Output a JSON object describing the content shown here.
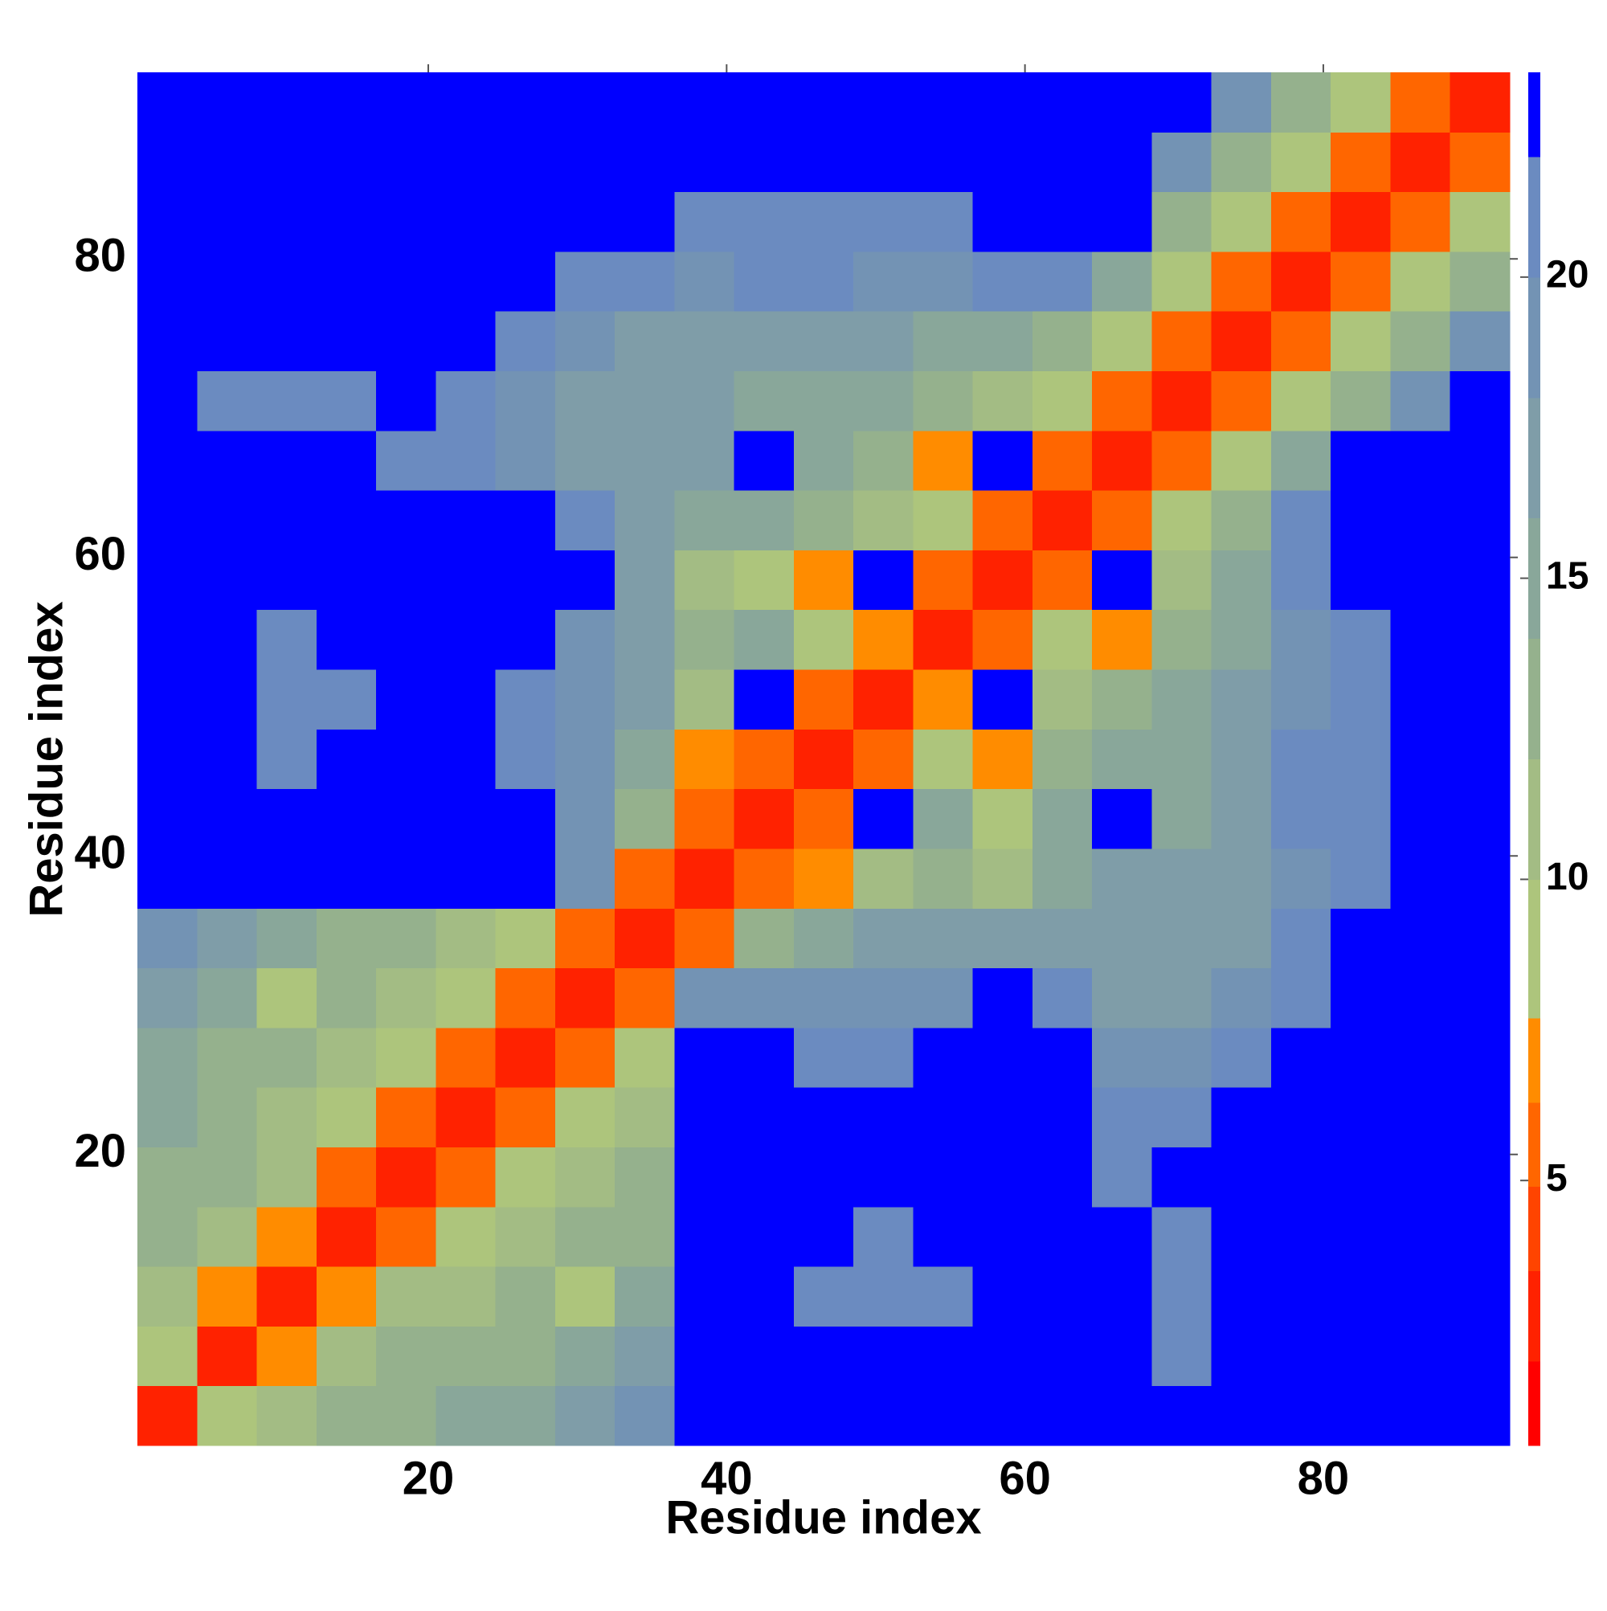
{
  "chart_data": {
    "type": "heatmap",
    "xlabel": "Residue index",
    "ylabel": "Residue index",
    "xlim": [
      0.5,
      92.5
    ],
    "ylim": [
      0.5,
      92.5
    ],
    "xticks": [
      20,
      40,
      60,
      80
    ],
    "yticks": [
      20,
      40,
      60,
      80
    ],
    "x_edges": [
      0.5,
      4.5,
      8.5,
      12.5,
      16.5,
      20.5,
      24.5,
      28.5,
      32.5,
      36.5,
      40.5,
      44.5,
      48.5,
      52.5,
      56.5,
      60.5,
      64.5,
      68.5,
      72.5,
      76.5,
      80.5,
      84.5,
      88.5,
      92.5
    ],
    "y_edges": [
      0.5,
      4.5,
      8.5,
      12.5,
      16.5,
      20.5,
      24.5,
      28.5,
      32.5,
      36.5,
      40.5,
      44.5,
      48.5,
      52.5,
      56.5,
      60.5,
      64.5,
      68.5,
      72.5,
      76.5,
      80.5,
      84.5,
      88.5,
      92.5
    ],
    "values": [
      [
        2,
        8,
        11,
        12,
        13,
        14,
        15,
        17,
        18,
        25,
        25,
        25,
        25,
        25,
        25,
        25,
        25,
        25,
        25,
        25,
        25,
        25,
        25
      ],
      [
        8,
        2,
        7,
        10,
        12,
        13,
        13,
        14,
        16,
        25,
        25,
        25,
        25,
        25,
        25,
        25,
        25,
        21,
        25,
        25,
        25,
        25,
        25
      ],
      [
        11,
        7,
        2,
        7,
        10,
        11,
        12,
        9,
        14,
        23,
        25,
        21,
        21,
        21,
        25,
        25,
        25,
        20,
        25,
        25,
        25,
        25,
        25
      ],
      [
        12,
        10,
        7,
        2,
        6,
        9,
        11,
        12,
        13,
        25,
        25,
        22,
        21,
        25,
        25,
        25,
        22,
        21,
        25,
        25,
        25,
        25,
        25
      ],
      [
        13,
        12,
        10,
        6,
        2,
        5,
        8,
        11,
        13,
        25,
        25,
        25,
        23,
        25,
        25,
        25,
        21,
        22,
        25,
        25,
        25,
        25,
        25
      ],
      [
        14,
        13,
        11,
        9,
        5,
        2,
        5,
        8,
        11,
        25,
        25,
        23,
        25,
        25,
        25,
        25,
        21,
        20,
        25,
        25,
        25,
        25,
        25
      ],
      [
        15,
        13,
        12,
        11,
        8,
        5,
        2,
        5,
        8,
        22,
        22,
        21,
        21,
        22,
        25,
        25,
        19,
        19,
        21,
        25,
        25,
        25,
        25
      ],
      [
        17,
        14,
        9,
        12,
        11,
        8,
        5,
        2,
        5,
        18,
        19,
        18,
        18,
        19,
        22,
        21,
        17,
        17,
        19,
        21,
        25,
        25,
        25
      ],
      [
        18,
        16,
        14,
        13,
        13,
        11,
        8,
        5,
        2,
        6,
        12,
        14,
        16,
        17,
        17,
        17,
        16,
        16,
        17,
        20,
        25,
        25,
        25
      ],
      [
        25,
        25,
        23,
        25,
        25,
        25,
        22,
        18,
        6,
        2,
        6,
        7,
        11,
        13,
        10,
        15,
        16,
        16,
        17,
        19,
        20,
        25,
        25
      ],
      [
        25,
        25,
        25,
        25,
        25,
        25,
        22,
        19,
        12,
        6,
        2,
        6,
        24,
        14,
        9,
        14,
        24,
        15,
        17,
        20,
        21,
        25,
        25
      ],
      [
        25,
        25,
        21,
        22,
        25,
        23,
        21,
        18,
        14,
        7,
        6,
        2,
        6,
        9,
        7,
        12,
        14,
        14,
        16,
        20,
        21,
        25,
        25
      ],
      [
        25,
        25,
        21,
        21,
        23,
        25,
        21,
        18,
        16,
        11,
        24,
        6,
        2,
        7,
        24,
        11,
        13,
        14,
        16,
        19,
        21,
        25,
        25
      ],
      [
        25,
        25,
        21,
        25,
        25,
        25,
        22,
        19,
        17,
        13,
        14,
        9,
        7,
        2,
        6,
        8,
        7,
        12,
        15,
        19,
        21,
        25,
        25
      ],
      [
        25,
        25,
        25,
        25,
        25,
        25,
        25,
        22,
        17,
        10,
        9,
        7,
        24,
        6,
        2,
        6,
        24,
        11,
        14,
        20,
        24,
        25,
        25
      ],
      [
        25,
        25,
        25,
        25,
        25,
        25,
        25,
        21,
        17,
        15,
        14,
        12,
        11,
        8,
        6,
        2,
        6,
        9,
        12,
        20,
        25,
        25,
        25
      ],
      [
        25,
        25,
        25,
        22,
        21,
        21,
        19,
        17,
        16,
        16,
        24,
        14,
        13,
        7,
        24,
        6,
        2,
        6,
        8,
        15,
        22,
        25,
        25
      ],
      [
        25,
        21,
        20,
        21,
        22,
        20,
        19,
        17,
        16,
        16,
        15,
        14,
        14,
        12,
        11,
        9,
        6,
        2,
        5,
        9,
        13,
        19,
        25
      ],
      [
        25,
        25,
        25,
        25,
        25,
        25,
        21,
        19,
        17,
        17,
        17,
        16,
        16,
        15,
        14,
        12,
        8,
        5,
        2,
        5,
        9,
        13,
        18
      ],
      [
        25,
        25,
        25,
        25,
        25,
        25,
        25,
        21,
        20,
        19,
        20,
        20,
        19,
        19,
        20,
        20,
        15,
        9,
        5,
        2,
        5,
        9,
        13
      ],
      [
        25,
        25,
        25,
        25,
        25,
        25,
        25,
        25,
        25,
        20,
        21,
        21,
        21,
        21,
        24,
        25,
        22,
        13,
        9,
        5,
        2,
        5,
        9
      ],
      [
        25,
        25,
        25,
        25,
        25,
        25,
        25,
        25,
        25,
        25,
        25,
        25,
        25,
        25,
        25,
        25,
        25,
        19,
        13,
        9,
        5,
        2,
        5
      ],
      [
        25,
        25,
        25,
        25,
        25,
        25,
        25,
        25,
        25,
        25,
        25,
        25,
        25,
        25,
        25,
        25,
        25,
        25,
        18,
        13,
        9,
        5,
        2
      ]
    ],
    "zlim": [
      0.6,
      23.4
    ],
    "zticks": [
      5,
      10,
      15,
      20
    ],
    "colorscale": [
      [
        0.6,
        "#ff0000"
      ],
      [
        2.0,
        "#ff2200"
      ],
      [
        3.5,
        "#ff4400"
      ],
      [
        4.9,
        "#ff6600"
      ],
      [
        6.3,
        "#ff8c00"
      ],
      [
        7.7,
        "#adc57c"
      ],
      [
        10,
        "#a3bc84"
      ],
      [
        12,
        "#95b18d"
      ],
      [
        14,
        "#89a79a"
      ],
      [
        16,
        "#7f9da8"
      ],
      [
        18,
        "#7393b4"
      ],
      [
        20,
        "#6b8bc0"
      ],
      [
        22,
        "#0000ff"
      ]
    ]
  }
}
